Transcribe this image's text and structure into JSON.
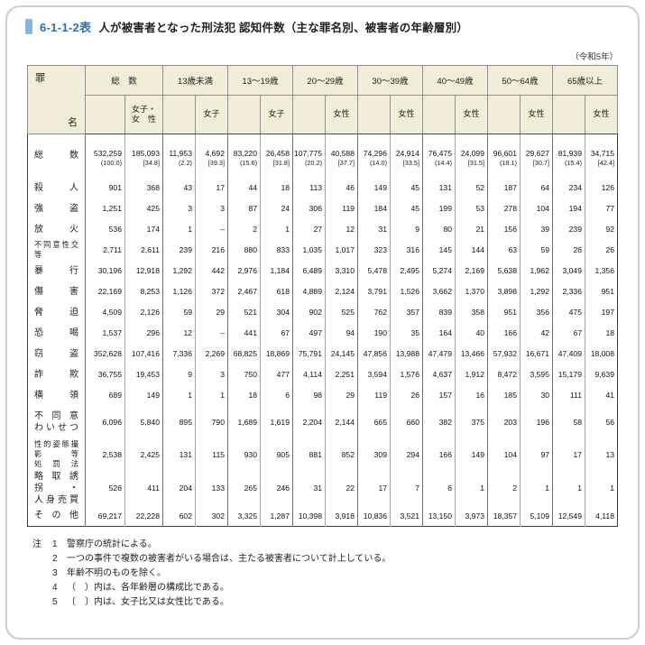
{
  "page": {
    "table_no": "6-1-1-2表",
    "title": "人が被害者となった刑法犯 認知件数（主な罪名別、被害者の年齢層別）",
    "era_note": "（令和5年）"
  },
  "colors": {
    "accent_blue": "#2e6fae",
    "tag_bar_blue": "#8ab3da",
    "header_bg": "#f2edd8"
  },
  "table": {
    "corner_label": [
      "罪",
      "名"
    ],
    "col_groups": [
      {
        "label": "総　数",
        "sub": "女子・\n女　性"
      },
      {
        "label": "13歳未満",
        "sub": "女子"
      },
      {
        "label": "13〜19歳",
        "sub": "女子"
      },
      {
        "label": "20〜29歳",
        "sub": "女性"
      },
      {
        "label": "30〜39歳",
        "sub": "女性"
      },
      {
        "label": "40〜49歳",
        "sub": "女性"
      },
      {
        "label": "50〜64歳",
        "sub": "女性"
      },
      {
        "label": "65歳以上",
        "sub": "女性"
      }
    ],
    "total_row": {
      "label": "総数",
      "cells": [
        {
          "v": "532,259",
          "p": "(100.0)"
        },
        {
          "v": "185,093",
          "p": "[34.8]"
        },
        {
          "v": "11,953",
          "p": "(2.2)"
        },
        {
          "v": "4,692",
          "p": "[39.3]"
        },
        {
          "v": "83,220",
          "p": "(15.6)"
        },
        {
          "v": "26,458",
          "p": "[31.8]"
        },
        {
          "v": "107,775",
          "p": "(20.2)"
        },
        {
          "v": "40,588",
          "p": "[37.7]"
        },
        {
          "v": "74,296",
          "p": "(14.0)"
        },
        {
          "v": "24,914",
          "p": "[33.5]"
        },
        {
          "v": "76,475",
          "p": "(14.4)"
        },
        {
          "v": "24,099",
          "p": "[31.5]"
        },
        {
          "v": "96,601",
          "p": "(18.1)"
        },
        {
          "v": "29,627",
          "p": "[30.7]"
        },
        {
          "v": "81,939",
          "p": "(15.4)"
        },
        {
          "v": "34,715",
          "p": "[42.4]"
        }
      ]
    },
    "rows": [
      {
        "label": "殺人",
        "cells": [
          "901",
          "368",
          "43",
          "17",
          "44",
          "18",
          "113",
          "46",
          "149",
          "45",
          "131",
          "52",
          "187",
          "64",
          "234",
          "126"
        ]
      },
      {
        "label": "強盗",
        "cells": [
          "1,251",
          "425",
          "3",
          "3",
          "87",
          "24",
          "306",
          "119",
          "184",
          "45",
          "199",
          "53",
          "278",
          "104",
          "194",
          "77"
        ]
      },
      {
        "label": "放火",
        "cells": [
          "536",
          "174",
          "1",
          "–",
          "2",
          "1",
          "27",
          "12",
          "31",
          "9",
          "80",
          "21",
          "156",
          "39",
          "239",
          "92"
        ]
      },
      {
        "label": "不同意性交等",
        "small": true,
        "cells": [
          "2,711",
          "2,611",
          "239",
          "216",
          "880",
          "833",
          "1,035",
          "1,017",
          "323",
          "316",
          "145",
          "144",
          "63",
          "59",
          "26",
          "26"
        ]
      },
      {
        "label": "暴行",
        "cells": [
          "30,196",
          "12,918",
          "1,292",
          "442",
          "2,976",
          "1,184",
          "6,489",
          "3,310",
          "5,478",
          "2,495",
          "5,274",
          "2,169",
          "5,638",
          "1,962",
          "3,049",
          "1,356"
        ]
      },
      {
        "label": "傷害",
        "cells": [
          "22,169",
          "8,253",
          "1,126",
          "372",
          "2,467",
          "618",
          "4,889",
          "2,124",
          "3,791",
          "1,526",
          "3,662",
          "1,370",
          "3,898",
          "1,292",
          "2,336",
          "951"
        ]
      },
      {
        "label": "脅迫",
        "cells": [
          "4,509",
          "2,126",
          "59",
          "29",
          "521",
          "304",
          "902",
          "525",
          "762",
          "357",
          "839",
          "358",
          "951",
          "356",
          "475",
          "197"
        ]
      },
      {
        "label": "恐喝",
        "cells": [
          "1,537",
          "296",
          "12",
          "–",
          "441",
          "67",
          "497",
          "94",
          "190",
          "35",
          "164",
          "40",
          "166",
          "42",
          "67",
          "18"
        ]
      },
      {
        "label": "窃盗",
        "cells": [
          "352,628",
          "107,416",
          "7,336",
          "2,269",
          "68,825",
          "18,869",
          "75,791",
          "24,145",
          "47,856",
          "13,988",
          "47,479",
          "13,466",
          "57,932",
          "16,671",
          "47,409",
          "18,008"
        ]
      },
      {
        "label": "詐欺",
        "cells": [
          "36,755",
          "19,453",
          "9",
          "3",
          "750",
          "477",
          "4,114",
          "2,251",
          "3,594",
          "1,576",
          "4,637",
          "1,912",
          "8,472",
          "3,595",
          "15,179",
          "9,639"
        ]
      },
      {
        "label": "横領",
        "cells": [
          "689",
          "149",
          "1",
          "1",
          "18",
          "6",
          "98",
          "29",
          "119",
          "26",
          "157",
          "16",
          "185",
          "30",
          "111",
          "41"
        ]
      },
      {
        "label": "不同意\nわいせつ",
        "cells": [
          "6,096",
          "5,840",
          "895",
          "790",
          "1,689",
          "1,619",
          "2,204",
          "2,144",
          "665",
          "660",
          "382",
          "375",
          "203",
          "196",
          "58",
          "56"
        ]
      },
      {
        "label": "性的姿態撮影等\n処罰法",
        "small": true,
        "cells": [
          "2,538",
          "2,425",
          "131",
          "115",
          "930",
          "905",
          "881",
          "852",
          "309",
          "294",
          "166",
          "149",
          "104",
          "97",
          "17",
          "13"
        ]
      },
      {
        "label": "略取誘拐・\n人身売買",
        "cells": [
          "526",
          "411",
          "204",
          "133",
          "265",
          "246",
          "31",
          "22",
          "17",
          "7",
          "6",
          "1",
          "2",
          "1",
          "1",
          "1"
        ]
      },
      {
        "label": "その他",
        "cells": [
          "69,217",
          "22,228",
          "602",
          "302",
          "3,325",
          "1,287",
          "10,398",
          "3,918",
          "10,836",
          "3,521",
          "13,150",
          "3,973",
          "18,357",
          "5,109",
          "12,549",
          "4,118"
        ]
      }
    ]
  },
  "notes": {
    "marker": "注",
    "items": [
      {
        "no": "1",
        "text": "警察庁の統計による。"
      },
      {
        "no": "2",
        "text": "一つの事件で複数の被害者がいる場合は、主たる被害者について計上している。"
      },
      {
        "no": "3",
        "text": "年齢不明のものを除く。"
      },
      {
        "no": "4",
        "text": "（　）内は、各年齢層の構成比である。"
      },
      {
        "no": "5",
        "text": "〔　〕内は、女子比又は女性比である。"
      }
    ]
  }
}
